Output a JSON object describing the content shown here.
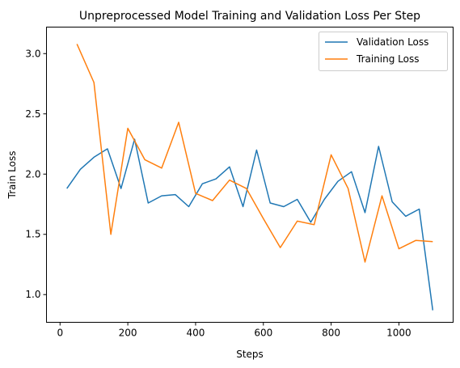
{
  "chart_data": {
    "type": "line",
    "title": "Unpreprocessed Model Training and Validation Loss Per Step",
    "xlabel": "Steps",
    "ylabel": "Train Loss",
    "xlim": [
      -40,
      1160
    ],
    "ylim": [
      0.77,
      3.22
    ],
    "xticks": [
      0,
      200,
      400,
      600,
      800,
      1000
    ],
    "yticks": [
      1.0,
      1.5,
      2.0,
      2.5,
      3.0
    ],
    "ytick_labels": [
      "1.0",
      "1.5",
      "2.0",
      "2.5",
      "3.0"
    ],
    "grid": false,
    "legend_position": "top-right",
    "series": [
      {
        "name": "Validation Loss",
        "color": "#1f77b4",
        "x": [
          20,
          60,
          100,
          140,
          180,
          220,
          260,
          300,
          340,
          380,
          420,
          460,
          500,
          540,
          580,
          620,
          660,
          700,
          740,
          780,
          820,
          860,
          900,
          940,
          980,
          1020,
          1060,
          1100
        ],
        "y": [
          1.88,
          2.04,
          2.14,
          2.21,
          1.88,
          2.29,
          1.76,
          1.82,
          1.83,
          1.73,
          1.92,
          1.96,
          2.06,
          1.73,
          2.2,
          1.76,
          1.73,
          1.79,
          1.6,
          1.79,
          1.94,
          2.02,
          1.68,
          2.23,
          1.77,
          1.65,
          1.71,
          0.87
        ]
      },
      {
        "name": "Training Loss",
        "color": "#ff7f0e",
        "x": [
          50,
          100,
          150,
          200,
          250,
          300,
          350,
          400,
          450,
          500,
          550,
          600,
          650,
          700,
          750,
          800,
          850,
          900,
          950,
          1000,
          1050,
          1100
        ],
        "y": [
          3.08,
          2.76,
          1.5,
          2.38,
          2.12,
          2.05,
          2.43,
          1.84,
          1.78,
          1.95,
          1.88,
          1.63,
          1.39,
          1.61,
          1.58,
          2.16,
          1.88,
          1.27,
          1.82,
          1.38,
          1.45,
          1.44
        ]
      }
    ]
  }
}
